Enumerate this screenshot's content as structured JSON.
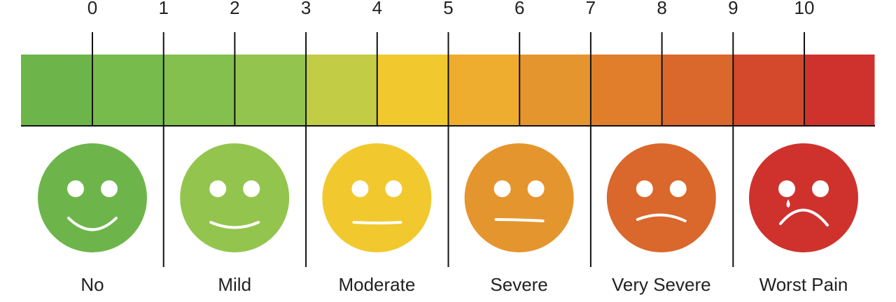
{
  "scale": {
    "ticks": [
      0,
      1,
      2,
      3,
      4,
      5,
      6,
      7,
      8,
      9,
      10
    ]
  },
  "faces": [
    {
      "label": "No"
    },
    {
      "label": "Mild"
    },
    {
      "label": "Moderate"
    },
    {
      "label": "Severe"
    },
    {
      "label": "Very Severe"
    },
    {
      "label": "Worst Pain"
    }
  ]
}
